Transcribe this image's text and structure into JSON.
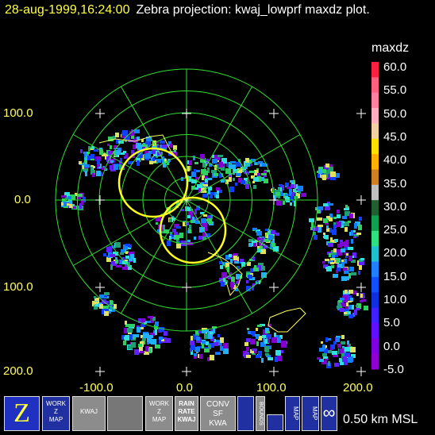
{
  "header": {
    "timestamp": "28-aug-1999,16:24:00",
    "title": "Zebra projection: kwaj_lowprf maxdz plot."
  },
  "axes": {
    "y_labels": [
      "100.0",
      "0.0",
      "100.0",
      "200.0"
    ],
    "x_labels": [
      "-100.0",
      "0.0",
      "100.0",
      "200.0"
    ]
  },
  "colorbar": {
    "title": "maxdz",
    "labels": [
      "60.0",
      "55.0",
      "50.0",
      "45.0",
      "40.0",
      "35.0",
      "30.0",
      "25.0",
      "20.0",
      "15.0",
      "10.0",
      "5.0",
      "0.0",
      "-5.0"
    ]
  },
  "toolbar": {
    "icons": [
      [
        "WORK",
        "Z",
        "MAP"
      ],
      [
        "KWAJ"
      ],
      [
        "WORK",
        "Z",
        "MAP"
      ],
      [
        "RAIN",
        "RATE",
        "KWAJ"
      ],
      [
        "CONV",
        "SF",
        "KWA"
      ],
      [
        "BOUNDS"
      ],
      [
        "MAP"
      ],
      [
        "MAP"
      ]
    ]
  },
  "status": "0.50 km MSL"
}
